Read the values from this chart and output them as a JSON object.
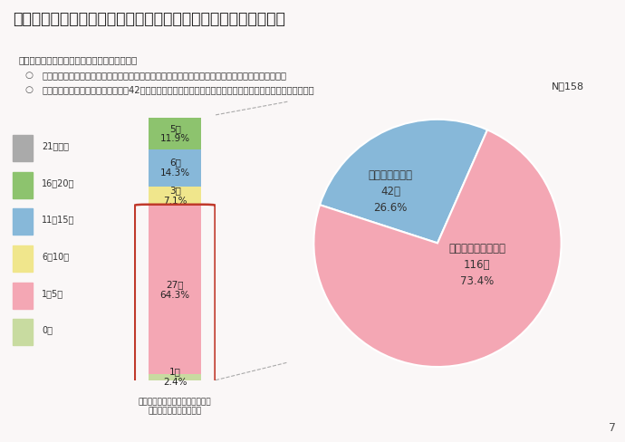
{
  "title": "３．調査結果詳細　（２）女性が働きやすい職場環境整備の状況",
  "subtitle": "問２－１　働きやすい職場環境整備の取組状況",
  "bullets": [
    "会社において女性が働きやすい職場環境整備の取組をはじめていると回答した人は７割以上だった。",
    "「特にしていない」と回答した人（42人）のうち、会社の女性従業員数が「５人以下」が過半数以上である。"
  ],
  "seg_values": [
    1,
    27,
    3,
    6,
    5
  ],
  "seg_colors": [
    "#c8dba0",
    "#f4a7b4",
    "#f0e68c",
    "#87b8d9",
    "#8dc36e"
  ],
  "seg_labels": [
    "1人\n2.4%",
    "27人\n64.3%",
    "3人\n7.1%",
    "6人\n14.3%",
    "5人\n11.9%"
  ],
  "bar_xlabel": "特にしていないと回答した企業の\n女性従業員数別会社内訳",
  "legend_items": [
    {
      "label": "21人以上",
      "color": "#aaaaaa"
    },
    {
      "label": "16〜20人",
      "color": "#8dc36e"
    },
    {
      "label": "11〜15人",
      "color": "#87b8d9"
    },
    {
      "label": "6〜10人",
      "color": "#f0e68c"
    },
    {
      "label": "1〜5人",
      "color": "#f4a7b4"
    },
    {
      "label": "0人",
      "color": "#c8dba0"
    }
  ],
  "pie_values": [
    26.6,
    73.4
  ],
  "pie_colors": [
    "#87b8d9",
    "#f4a7b4"
  ],
  "pie_label1": "特にしていない\n42人\n26.6%",
  "pie_label2": "取組をはじめている\n116人\n73.4%",
  "n_label": "N＝158",
  "page_num": "7",
  "bg_color": "#faf7f7",
  "title_color": "#222222",
  "text_color": "#333333",
  "red_border": "#c0392b",
  "pink_line": "#e8b4b8"
}
